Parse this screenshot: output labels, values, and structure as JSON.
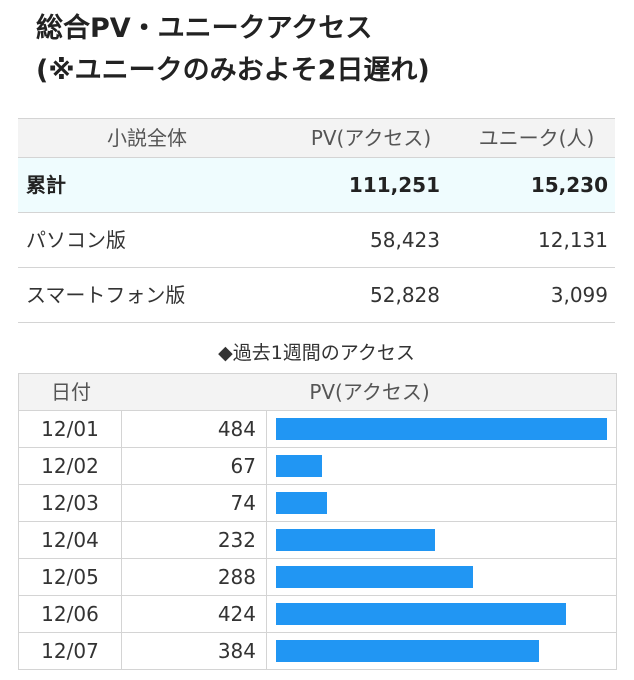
{
  "title": {
    "line1": "総合PV・ユニークアクセス",
    "line2": "(※ユニークのみおよそ2日遅れ)"
  },
  "summary": {
    "headers": [
      "小説全体",
      "PV(アクセス)",
      "ユニーク(人)"
    ],
    "rows": [
      {
        "label": "累計",
        "pv": "111,251",
        "unique": "15,230"
      },
      {
        "label": "パソコン版",
        "pv": "58,423",
        "unique": "12,131"
      },
      {
        "label": "スマートフォン版",
        "pv": "52,828",
        "unique": "3,099"
      }
    ]
  },
  "weekly": {
    "caption": "◆過去1週間のアクセス",
    "headers": [
      "日付",
      "PV(アクセス)"
    ]
  },
  "chart_data": {
    "type": "bar",
    "categories": [
      "12/01",
      "12/02",
      "12/03",
      "12/04",
      "12/05",
      "12/06",
      "12/07"
    ],
    "values": [
      484,
      67,
      74,
      232,
      288,
      424,
      384
    ],
    "bar_color": "#2196f3"
  },
  "colors": {
    "total_row_bg": "#effcfe",
    "header_bg": "#f3f3f3",
    "border": "#d4d4d4"
  }
}
